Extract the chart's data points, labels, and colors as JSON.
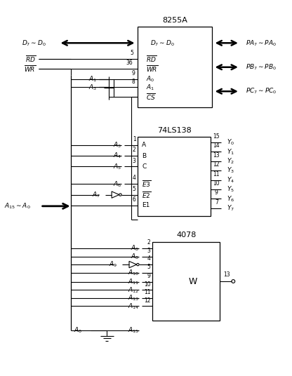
{
  "bg_color": "#ffffff",
  "fg_color": "#000000",
  "chip_8255A_label": "8255A",
  "chip_74LS138_label": "74LS138",
  "chip_4078_label": "4078"
}
